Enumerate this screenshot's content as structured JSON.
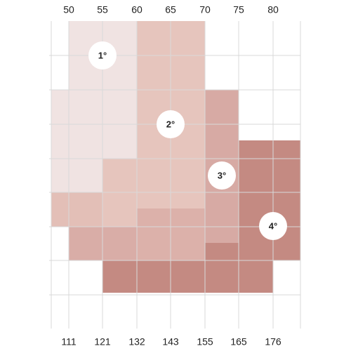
{
  "top_axis": {
    "labels": [
      "50",
      "55",
      "60",
      "65",
      "70",
      "75",
      "80"
    ]
  },
  "bottom_axis": {
    "labels": [
      "111",
      "121",
      "132",
      "143",
      "155",
      "165",
      "176"
    ]
  },
  "zones": [
    {
      "label": "1°"
    },
    {
      "label": "2°"
    },
    {
      "label": "3°"
    },
    {
      "label": "4°"
    }
  ]
}
